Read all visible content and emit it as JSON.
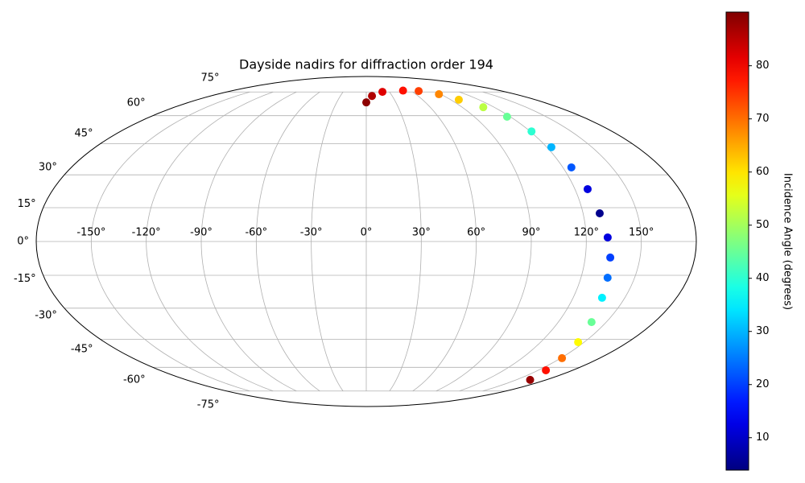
{
  "chart_data": {
    "type": "scatter",
    "projection": "mollweide",
    "cmap": "jet",
    "grid": true,
    "title": "Dayside nadirs for diffraction order 194",
    "colorbar_label": "Incidence Angle (degrees)",
    "lon": [
      0,
      6.6,
      20.9,
      49.5,
      69.6,
      87.8,
      98.6,
      109.8,
      117.3,
      121.0,
      123.0,
      125.2,
      127.3,
      129.2,
      131.7,
      133.7,
      134.9,
      136.8,
      140.8,
      145.8,
      150.9,
      156.6,
      163.9
    ],
    "lat": [
      68,
      72.2,
      75.1,
      76,
      75.7,
      73.4,
      69.7,
      65,
      59.4,
      51.4,
      43.3,
      33.5,
      23.4,
      12.5,
      1.8,
      -7.1,
      -16.1,
      -25.2,
      -36.6,
      -46.5,
      -54.9,
      -61.7,
      -67.5
    ],
    "incidence": [
      89,
      86,
      82,
      78,
      74,
      68,
      62,
      52,
      45,
      40,
      30,
      22,
      12,
      5,
      12,
      20,
      24,
      35,
      45,
      58,
      70,
      78,
      88
    ],
    "xticks": [
      {
        "value": -150,
        "label": "-150°"
      },
      {
        "value": -120,
        "label": "-120°"
      },
      {
        "value": -90,
        "label": "-90°"
      },
      {
        "value": -60,
        "label": "-60°"
      },
      {
        "value": -30,
        "label": "-30°"
      },
      {
        "value": 0,
        "label": "0°"
      },
      {
        "value": 30,
        "label": "30°"
      },
      {
        "value": 60,
        "label": "60°"
      },
      {
        "value": 90,
        "label": "90°"
      },
      {
        "value": 120,
        "label": "120°"
      },
      {
        "value": 150,
        "label": "150°"
      }
    ],
    "yticks": [
      {
        "value": -75,
        "label": "-75°"
      },
      {
        "value": -60,
        "label": "-60°"
      },
      {
        "value": -45,
        "label": "-45°"
      },
      {
        "value": -30,
        "label": "-30°"
      },
      {
        "value": -15,
        "label": "-15°"
      },
      {
        "value": 0,
        "label": "0°"
      },
      {
        "value": 15,
        "label": "15°"
      },
      {
        "value": 30,
        "label": "30°"
      },
      {
        "value": 45,
        "label": "45°"
      },
      {
        "value": 60,
        "label": "60°"
      },
      {
        "value": 75,
        "label": "75°"
      }
    ],
    "clim": [
      3.9,
      90.1
    ],
    "cticks": [
      10,
      20,
      30,
      40,
      50,
      60,
      70,
      80
    ]
  }
}
